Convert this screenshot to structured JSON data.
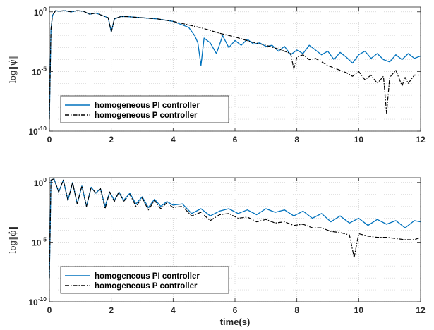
{
  "colors": {
    "pi": "#0072BD",
    "p": "#000000",
    "axis": "#262626",
    "grid": "#d0d0d0"
  },
  "chart_data": [
    {
      "type": "line",
      "ylabel": "log‖ψ̇‖",
      "xlabel": "",
      "xlim": [
        0,
        12
      ],
      "ylim_log10": [
        -10,
        0.4
      ],
      "yscale": "log",
      "grid": true,
      "legend_position": "bottom-left",
      "xticks": [
        "0",
        "2",
        "4",
        "6",
        "8",
        "10",
        "12"
      ],
      "yticks": [
        {
          "base": "10",
          "exp": "0",
          "value_log10": 0
        },
        {
          "base": "10",
          "exp": "-5",
          "value_log10": -5
        },
        {
          "base": "10",
          "exp": "-10",
          "value_log10": -10
        }
      ],
      "series": [
        {
          "name": "homogeneous PI controller",
          "style": "solid",
          "x": [
            0,
            0.05,
            0.1,
            0.2,
            0.3,
            0.5,
            0.7,
            0.9,
            1.1,
            1.3,
            1.5,
            1.7,
            1.9,
            2.0,
            2.1,
            2.3,
            2.5,
            3.0,
            3.5,
            4.0,
            4.5,
            4.7,
            4.8,
            4.9,
            5.0,
            5.2,
            5.4,
            5.6,
            5.8,
            6.0,
            6.2,
            6.4,
            6.6,
            6.8,
            7.0,
            7.2,
            7.4,
            7.6,
            7.8,
            8.0,
            8.2,
            8.4,
            8.6,
            8.8,
            9.0,
            9.2,
            9.4,
            9.6,
            9.8,
            10.0,
            10.2,
            10.4,
            10.6,
            10.8,
            11.0,
            11.2,
            11.4,
            11.6,
            11.8,
            12.0
          ],
          "y_log10": [
            -9,
            -1.5,
            -0.3,
            0.1,
            0.05,
            0.1,
            0.0,
            0.1,
            0.05,
            -0.2,
            -0.1,
            -0.3,
            -0.5,
            -1.7,
            -0.6,
            -0.4,
            -0.4,
            -0.5,
            -0.6,
            -0.8,
            -1.3,
            -2.0,
            -2.6,
            -4.5,
            -2.2,
            -2.6,
            -3.5,
            -2.0,
            -3.0,
            -2.4,
            -2.8,
            -2.3,
            -2.7,
            -2.6,
            -2.9,
            -2.8,
            -3.3,
            -2.9,
            -3.6,
            -3.2,
            -3.5,
            -2.8,
            -3.2,
            -3.6,
            -3.3,
            -4.0,
            -3.4,
            -3.8,
            -4.3,
            -3.6,
            -3.3,
            -3.9,
            -3.5,
            -4.0,
            -4.2,
            -3.6,
            -4.0,
            -3.5,
            -3.9,
            -3.7
          ]
        },
        {
          "name": "homogeneous P controller",
          "style": "dashdot",
          "x": [
            0,
            0.05,
            0.1,
            0.2,
            0.3,
            0.5,
            0.7,
            0.9,
            1.1,
            1.3,
            1.5,
            1.7,
            1.9,
            2.0,
            2.1,
            2.3,
            2.5,
            3.0,
            3.5,
            4.0,
            4.5,
            5.0,
            5.5,
            6.0,
            6.5,
            7.0,
            7.5,
            7.8,
            7.9,
            8.0,
            8.2,
            8.4,
            8.6,
            8.8,
            9.0,
            9.2,
            9.4,
            9.6,
            9.8,
            10.0,
            10.2,
            10.4,
            10.6,
            10.8,
            10.9,
            11.0,
            11.2,
            11.4,
            11.5,
            11.6,
            11.8,
            12.0
          ],
          "y_log10": [
            -9,
            -1.5,
            -0.3,
            0.1,
            0.05,
            0.1,
            0.0,
            0.1,
            0.05,
            -0.2,
            -0.1,
            -0.3,
            -0.5,
            -1.7,
            -0.6,
            -0.4,
            -0.4,
            -0.5,
            -0.6,
            -0.8,
            -1.1,
            -1.4,
            -1.8,
            -2.1,
            -2.5,
            -2.8,
            -3.2,
            -3.5,
            -4.8,
            -3.8,
            -3.6,
            -4.0,
            -3.9,
            -4.2,
            -4.5,
            -4.7,
            -4.9,
            -5.1,
            -5.4,
            -5.0,
            -5.7,
            -5.3,
            -6.0,
            -5.4,
            -8.5,
            -5.5,
            -4.9,
            -6.2,
            -5.5,
            -6.0,
            -5.3,
            -5.3
          ]
        }
      ]
    },
    {
      "type": "line",
      "ylabel": "log‖ϕ̇‖",
      "xlabel": "time(s)",
      "xlim": [
        0,
        12
      ],
      "ylim_log10": [
        -10,
        0.4
      ],
      "yscale": "log",
      "grid": true,
      "legend_position": "bottom-left",
      "xticks": [
        "0",
        "2",
        "4",
        "6",
        "8",
        "10",
        "12"
      ],
      "yticks": [
        {
          "base": "10",
          "exp": "0",
          "value_log10": 0
        },
        {
          "base": "10",
          "exp": "-5",
          "value_log10": -5
        },
        {
          "base": "10",
          "exp": "-10",
          "value_log10": -10
        }
      ],
      "series": [
        {
          "name": "homogeneous PI controller",
          "style": "solid",
          "x": [
            0,
            0.05,
            0.15,
            0.3,
            0.45,
            0.6,
            0.75,
            0.9,
            1.05,
            1.2,
            1.35,
            1.5,
            1.65,
            1.8,
            1.95,
            2.1,
            2.25,
            2.4,
            2.6,
            2.8,
            3.0,
            3.2,
            3.4,
            3.6,
            3.8,
            4.0,
            4.3,
            4.6,
            4.9,
            5.2,
            5.5,
            5.8,
            6.1,
            6.4,
            6.7,
            7.0,
            7.3,
            7.6,
            7.9,
            8.2,
            8.5,
            8.8,
            9.1,
            9.4,
            9.7,
            10.0,
            10.3,
            10.6,
            10.9,
            11.2,
            11.5,
            11.8,
            12.0
          ],
          "y_log10": [
            -8,
            0.2,
            0.3,
            -0.8,
            0.2,
            -1.5,
            0.0,
            -1.8,
            -0.3,
            -2.0,
            -0.4,
            -0.9,
            -0.5,
            -2.0,
            -0.8,
            -1.5,
            -0.8,
            -1.5,
            -0.9,
            -1.8,
            -1.2,
            -2.1,
            -1.4,
            -2.0,
            -1.6,
            -1.9,
            -1.8,
            -2.6,
            -2.2,
            -2.8,
            -2.4,
            -2.2,
            -2.6,
            -2.3,
            -2.7,
            -2.2,
            -2.5,
            -2.3,
            -2.8,
            -2.4,
            -3.0,
            -2.6,
            -3.3,
            -2.8,
            -3.4,
            -3.0,
            -3.6,
            -3.1,
            -3.5,
            -3.2,
            -3.8,
            -3.2,
            -3.3
          ]
        },
        {
          "name": "homogeneous P controller",
          "style": "dashdot",
          "x": [
            0,
            0.05,
            0.15,
            0.3,
            0.45,
            0.6,
            0.75,
            0.9,
            1.05,
            1.2,
            1.35,
            1.5,
            1.65,
            1.8,
            1.95,
            2.1,
            2.25,
            2.4,
            2.6,
            2.8,
            3.0,
            3.2,
            3.4,
            3.6,
            3.8,
            4.0,
            4.3,
            4.6,
            4.9,
            5.2,
            5.5,
            5.8,
            6.1,
            6.4,
            6.7,
            7.0,
            7.3,
            7.6,
            7.9,
            8.2,
            8.5,
            8.8,
            9.1,
            9.4,
            9.7,
            9.85,
            10.0,
            10.3,
            10.6,
            10.9,
            11.2,
            11.5,
            11.8,
            12.0
          ],
          "y_log10": [
            -8,
            0.2,
            0.3,
            -0.8,
            0.2,
            -1.5,
            0.0,
            -1.8,
            -0.3,
            -2.0,
            -0.4,
            -0.9,
            -0.5,
            -2.2,
            -0.8,
            -1.6,
            -0.8,
            -1.6,
            -1.0,
            -2.0,
            -1.3,
            -2.3,
            -1.5,
            -2.2,
            -1.7,
            -2.1,
            -2.0,
            -2.8,
            -2.5,
            -3.2,
            -2.7,
            -2.6,
            -3.0,
            -2.9,
            -3.3,
            -3.1,
            -3.4,
            -3.3,
            -3.6,
            -3.5,
            -3.8,
            -3.8,
            -4.1,
            -4.2,
            -4.4,
            -6.3,
            -4.3,
            -4.5,
            -4.6,
            -4.6,
            -4.7,
            -4.8,
            -4.8,
            -4.6
          ]
        }
      ]
    }
  ]
}
